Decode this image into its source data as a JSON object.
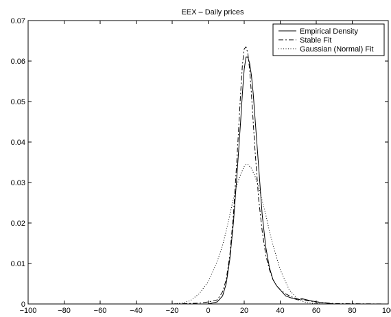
{
  "chart_data": {
    "type": "line",
    "title": "EEX – Daily prices",
    "xlabel": "",
    "ylabel": "",
    "xlim": [
      -100,
      100
    ],
    "ylim": [
      0,
      0.07
    ],
    "xticks": [
      "−100",
      "−80",
      "−60",
      "−40",
      "−20",
      "0",
      "20",
      "40",
      "60",
      "80",
      "100"
    ],
    "yticks": [
      "0",
      "0.01",
      "0.02",
      "0.03",
      "0.04",
      "0.05",
      "0.06",
      "0.07"
    ],
    "xtick_values": [
      -100,
      -80,
      -60,
      -40,
      -20,
      0,
      20,
      40,
      60,
      80,
      100
    ],
    "ytick_values": [
      0,
      0.01,
      0.02,
      0.03,
      0.04,
      0.05,
      0.06,
      0.07
    ],
    "grid": false,
    "legend_position": "top-right",
    "series": [
      {
        "name": "Empirical Density",
        "style": "solid",
        "x": [
          -100,
          -20,
          -5,
          0,
          5,
          8,
          10,
          12,
          14,
          16,
          18,
          19,
          20,
          21,
          22,
          23,
          24,
          25,
          26,
          28,
          30,
          32,
          34,
          36,
          38,
          40,
          43,
          46,
          50,
          52,
          55,
          58,
          62,
          66,
          70,
          100
        ],
        "y": [
          0,
          0,
          0,
          0,
          0.0005,
          0.002,
          0.005,
          0.011,
          0.02,
          0.032,
          0.045,
          0.052,
          0.058,
          0.061,
          0.061,
          0.0595,
          0.0565,
          0.052,
          0.046,
          0.034,
          0.022,
          0.014,
          0.009,
          0.006,
          0.0045,
          0.0035,
          0.002,
          0.0015,
          0.001,
          0.0013,
          0.001,
          0.0007,
          0.0004,
          0.0002,
          0,
          0
        ]
      },
      {
        "name": "Stable Fit",
        "style": "dashdot",
        "x": [
          -100,
          -20,
          -5,
          0,
          5,
          8,
          10,
          12,
          14,
          16,
          18,
          19,
          20,
          21,
          22,
          23,
          24,
          25,
          26,
          28,
          30,
          32,
          34,
          36,
          38,
          40,
          43,
          46,
          50,
          55,
          60,
          65,
          70,
          100
        ],
        "y": [
          0,
          0,
          0.0002,
          0.0005,
          0.001,
          0.003,
          0.006,
          0.012,
          0.022,
          0.036,
          0.052,
          0.059,
          0.063,
          0.0635,
          0.062,
          0.058,
          0.052,
          0.045,
          0.038,
          0.026,
          0.018,
          0.012,
          0.0085,
          0.006,
          0.0045,
          0.0035,
          0.0025,
          0.0018,
          0.0012,
          0.0008,
          0.0005,
          0.0003,
          0.0001,
          0
        ]
      },
      {
        "name": "Gaussian (Normal) Fit",
        "style": "dotted",
        "x": [
          -100,
          -20,
          -15,
          -10,
          -5,
          0,
          5,
          8,
          10,
          12,
          14,
          16,
          18,
          20,
          21,
          22,
          24,
          26,
          28,
          30,
          32,
          34,
          36,
          40,
          45,
          50,
          55,
          60,
          65,
          100
        ],
        "y": [
          0,
          0,
          0.0002,
          0.0008,
          0.0025,
          0.0055,
          0.0105,
          0.0145,
          0.018,
          0.022,
          0.026,
          0.0295,
          0.032,
          0.034,
          0.0345,
          0.0345,
          0.0335,
          0.0315,
          0.029,
          0.0255,
          0.022,
          0.018,
          0.0145,
          0.0085,
          0.0035,
          0.001,
          0.0003,
          0.0001,
          0,
          0
        ]
      }
    ]
  }
}
